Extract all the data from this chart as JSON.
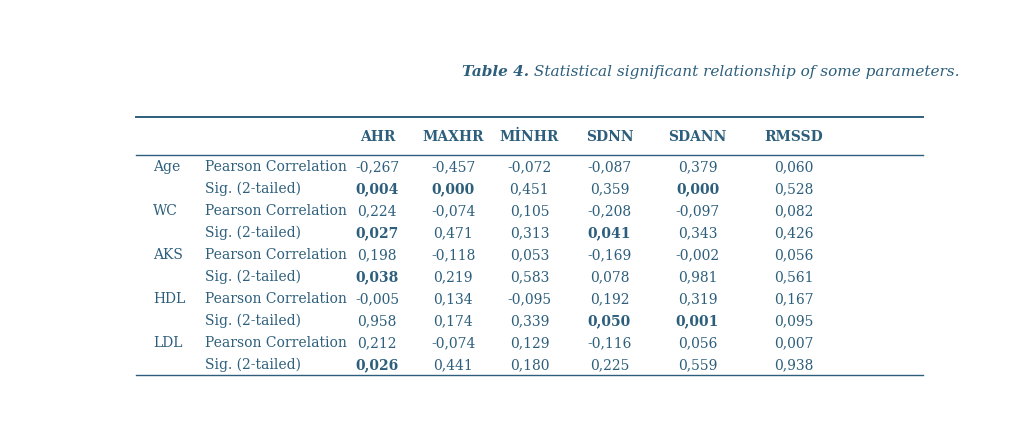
{
  "title_bold": "Table 4.",
  "title_italic": " Statistical significant relationship of some parameters.",
  "col_headers": [
    "AHR",
    "MAXHR",
    "MİNHR",
    "SDNN",
    "SDANN",
    "RMSSD"
  ],
  "rows": [
    {
      "label1": "Age",
      "label2": "Pearson Correlation",
      "values": [
        "-0,267",
        "-0,457",
        "-0,072",
        "-0,087",
        "0,379",
        "0,060"
      ],
      "bold": [
        false,
        false,
        false,
        false,
        false,
        false
      ]
    },
    {
      "label1": "",
      "label2": "Sig. (2-tailed)",
      "values": [
        "0,004",
        "0,000",
        "0,451",
        "0,359",
        "0,000",
        "0,528"
      ],
      "bold": [
        true,
        true,
        false,
        false,
        true,
        false
      ]
    },
    {
      "label1": "WC",
      "label2": "Pearson Correlation",
      "values": [
        "0,224",
        "-0,074",
        "0,105",
        "-0,208",
        "-0,097",
        "0,082"
      ],
      "bold": [
        false,
        false,
        false,
        false,
        false,
        false
      ]
    },
    {
      "label1": "",
      "label2": "Sig. (2-tailed)",
      "values": [
        "0,027",
        "0,471",
        "0,313",
        "0,041",
        "0,343",
        "0,426"
      ],
      "bold": [
        true,
        false,
        false,
        true,
        false,
        false
      ]
    },
    {
      "label1": "AKS",
      "label2": "Pearson Correlation",
      "values": [
        "0,198",
        "-0,118",
        "0,053",
        "-0,169",
        "-0,002",
        "0,056"
      ],
      "bold": [
        false,
        false,
        false,
        false,
        false,
        false
      ]
    },
    {
      "label1": "",
      "label2": "Sig. (2-tailed)",
      "values": [
        "0,038",
        "0,219",
        "0,583",
        "0,078",
        "0,981",
        "0,561"
      ],
      "bold": [
        true,
        false,
        false,
        false,
        false,
        false
      ]
    },
    {
      "label1": "HDL",
      "label2": "Pearson Correlation",
      "values": [
        "-0,005",
        "0,134",
        "-0,095",
        "0,192",
        "0,319",
        "0,167"
      ],
      "bold": [
        false,
        false,
        false,
        false,
        false,
        false
      ]
    },
    {
      "label1": "",
      "label2": "Sig. (2-tailed)",
      "values": [
        "0,958",
        "0,174",
        "0,339",
        "0,050",
        "0,001",
        "0,095"
      ],
      "bold": [
        false,
        false,
        false,
        true,
        true,
        false
      ]
    },
    {
      "label1": "LDL",
      "label2": "Pearson Correlation",
      "values": [
        "0,212",
        "-0,074",
        "0,129",
        "-0,116",
        "0,056",
        "0,007"
      ],
      "bold": [
        false,
        false,
        false,
        false,
        false,
        false
      ]
    },
    {
      "label1": "",
      "label2": "Sig. (2-tailed)",
      "values": [
        "0,026",
        "0,441",
        "0,180",
        "0,225",
        "0,559",
        "0,938"
      ],
      "bold": [
        true,
        false,
        false,
        false,
        false,
        false
      ]
    }
  ],
  "text_color": "#2d5f7c",
  "bg_color": "#ffffff",
  "line_color": "#2d5f7c",
  "title_fontsize": 11,
  "header_fontsize": 10,
  "cell_fontsize": 10
}
